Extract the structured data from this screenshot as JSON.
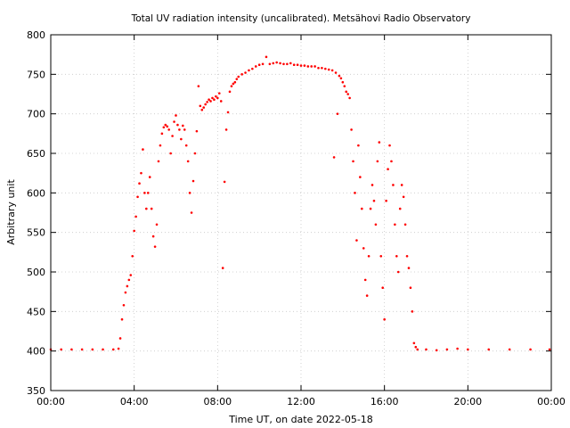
{
  "chart_data": {
    "type": "scatter",
    "title": "Total UV radiation intensity (uncalibrated). Metsähovi Radio Observatory",
    "xlabel": "Time UT, on date 2022-05-18",
    "ylabel": "Arbitrary unit",
    "xlim": [
      "00:00",
      "24:00"
    ],
    "ylim": [
      350,
      800
    ],
    "grid": true,
    "x_tick_labels": [
      "00:00",
      "04:00",
      "08:00",
      "12:00",
      "16:00",
      "20:00",
      "00:00"
    ],
    "y_tick_labels": [
      "350",
      "400",
      "450",
      "500",
      "550",
      "600",
      "650",
      "700",
      "750",
      "800"
    ],
    "series": [
      {
        "color": "#ff0000",
        "marker": "point",
        "points": [
          [
            "00:00",
            402
          ],
          [
            "00:30",
            402
          ],
          [
            "01:00",
            402
          ],
          [
            "01:30",
            402
          ],
          [
            "02:00",
            402
          ],
          [
            "02:30",
            402
          ],
          [
            "03:00",
            402
          ],
          [
            "03:15",
            403
          ],
          [
            "03:20",
            416
          ],
          [
            "03:25",
            440
          ],
          [
            "03:30",
            458
          ],
          [
            "03:35",
            474
          ],
          [
            "03:40",
            482
          ],
          [
            "03:45",
            490
          ],
          [
            "03:50",
            496
          ],
          [
            "03:55",
            520
          ],
          [
            "04:00",
            552
          ],
          [
            "04:05",
            570
          ],
          [
            "04:10",
            595
          ],
          [
            "04:15",
            612
          ],
          [
            "04:20",
            625
          ],
          [
            "04:25",
            655
          ],
          [
            "04:30",
            600
          ],
          [
            "04:35",
            580
          ],
          [
            "04:40",
            600
          ],
          [
            "04:45",
            620
          ],
          [
            "04:50",
            580
          ],
          [
            "04:55",
            545
          ],
          [
            "05:00",
            532
          ],
          [
            "05:05",
            560
          ],
          [
            "05:10",
            640
          ],
          [
            "05:15",
            660
          ],
          [
            "05:20",
            675
          ],
          [
            "05:25",
            683
          ],
          [
            "05:30",
            686
          ],
          [
            "05:35",
            684
          ],
          [
            "05:40",
            680
          ],
          [
            "05:45",
            650
          ],
          [
            "05:50",
            672
          ],
          [
            "05:55",
            690
          ],
          [
            "06:00",
            698
          ],
          [
            "06:05",
            686
          ],
          [
            "06:10",
            680
          ],
          [
            "06:15",
            668
          ],
          [
            "06:20",
            685
          ],
          [
            "06:25",
            680
          ],
          [
            "06:30",
            660
          ],
          [
            "06:35",
            640
          ],
          [
            "06:40",
            600
          ],
          [
            "06:45",
            575
          ],
          [
            "06:50",
            615
          ],
          [
            "06:55",
            650
          ],
          [
            "07:00",
            678
          ],
          [
            "07:05",
            735
          ],
          [
            "07:10",
            710
          ],
          [
            "07:15",
            705
          ],
          [
            "07:20",
            708
          ],
          [
            "07:25",
            712
          ],
          [
            "07:30",
            715
          ],
          [
            "07:35",
            718
          ],
          [
            "07:40",
            716
          ],
          [
            "07:45",
            720
          ],
          [
            "07:50",
            718
          ],
          [
            "07:55",
            722
          ],
          [
            "08:00",
            720
          ],
          [
            "08:05",
            726
          ],
          [
            "08:10",
            716
          ],
          [
            "08:15",
            505
          ],
          [
            "08:20",
            614
          ],
          [
            "08:25",
            680
          ],
          [
            "08:30",
            702
          ],
          [
            "08:35",
            728
          ],
          [
            "08:40",
            735
          ],
          [
            "08:45",
            738
          ],
          [
            "08:50",
            740
          ],
          [
            "08:55",
            744
          ],
          [
            "09:00",
            747
          ],
          [
            "09:10",
            750
          ],
          [
            "09:20",
            752
          ],
          [
            "09:30",
            755
          ],
          [
            "09:40",
            757
          ],
          [
            "09:50",
            760
          ],
          [
            "10:00",
            762
          ],
          [
            "10:10",
            763
          ],
          [
            "10:20",
            772
          ],
          [
            "10:30",
            763
          ],
          [
            "10:40",
            764
          ],
          [
            "10:50",
            765
          ],
          [
            "11:00",
            764
          ],
          [
            "11:10",
            763
          ],
          [
            "11:20",
            763
          ],
          [
            "11:30",
            764
          ],
          [
            "11:40",
            762
          ],
          [
            "11:50",
            762
          ],
          [
            "12:00",
            761
          ],
          [
            "12:10",
            761
          ],
          [
            "12:20",
            760
          ],
          [
            "12:30",
            760
          ],
          [
            "12:40",
            760
          ],
          [
            "12:50",
            758
          ],
          [
            "13:00",
            758
          ],
          [
            "13:10",
            757
          ],
          [
            "13:20",
            756
          ],
          [
            "13:30",
            755
          ],
          [
            "13:35",
            645
          ],
          [
            "13:40",
            752
          ],
          [
            "13:45",
            700
          ],
          [
            "13:50",
            748
          ],
          [
            "13:55",
            745
          ],
          [
            "14:00",
            740
          ],
          [
            "14:05",
            735
          ],
          [
            "14:10",
            728
          ],
          [
            "14:15",
            725
          ],
          [
            "14:20",
            720
          ],
          [
            "14:25",
            680
          ],
          [
            "14:30",
            640
          ],
          [
            "14:35",
            600
          ],
          [
            "14:40",
            540
          ],
          [
            "14:45",
            660
          ],
          [
            "14:50",
            620
          ],
          [
            "14:55",
            580
          ],
          [
            "15:00",
            530
          ],
          [
            "15:05",
            490
          ],
          [
            "15:10",
            470
          ],
          [
            "15:15",
            520
          ],
          [
            "15:20",
            580
          ],
          [
            "15:25",
            610
          ],
          [
            "15:30",
            590
          ],
          [
            "15:35",
            560
          ],
          [
            "15:40",
            640
          ],
          [
            "15:45",
            664
          ],
          [
            "15:50",
            520
          ],
          [
            "15:55",
            480
          ],
          [
            "16:00",
            440
          ],
          [
            "16:05",
            590
          ],
          [
            "16:10",
            630
          ],
          [
            "16:15",
            660
          ],
          [
            "16:20",
            640
          ],
          [
            "16:25",
            610
          ],
          [
            "16:30",
            560
          ],
          [
            "16:35",
            520
          ],
          [
            "16:40",
            500
          ],
          [
            "16:45",
            580
          ],
          [
            "16:50",
            610
          ],
          [
            "16:55",
            595
          ],
          [
            "17:00",
            560
          ],
          [
            "17:05",
            520
          ],
          [
            "17:10",
            505
          ],
          [
            "17:15",
            480
          ],
          [
            "17:20",
            450
          ],
          [
            "17:25",
            410
          ],
          [
            "17:30",
            405
          ],
          [
            "17:35",
            402
          ],
          [
            "18:00",
            402
          ],
          [
            "18:30",
            401
          ],
          [
            "19:00",
            402
          ],
          [
            "19:30",
            403
          ],
          [
            "20:00",
            402
          ],
          [
            "21:00",
            402
          ],
          [
            "22:00",
            402
          ],
          [
            "23:00",
            402
          ],
          [
            "23:55",
            402
          ]
        ]
      }
    ]
  }
}
